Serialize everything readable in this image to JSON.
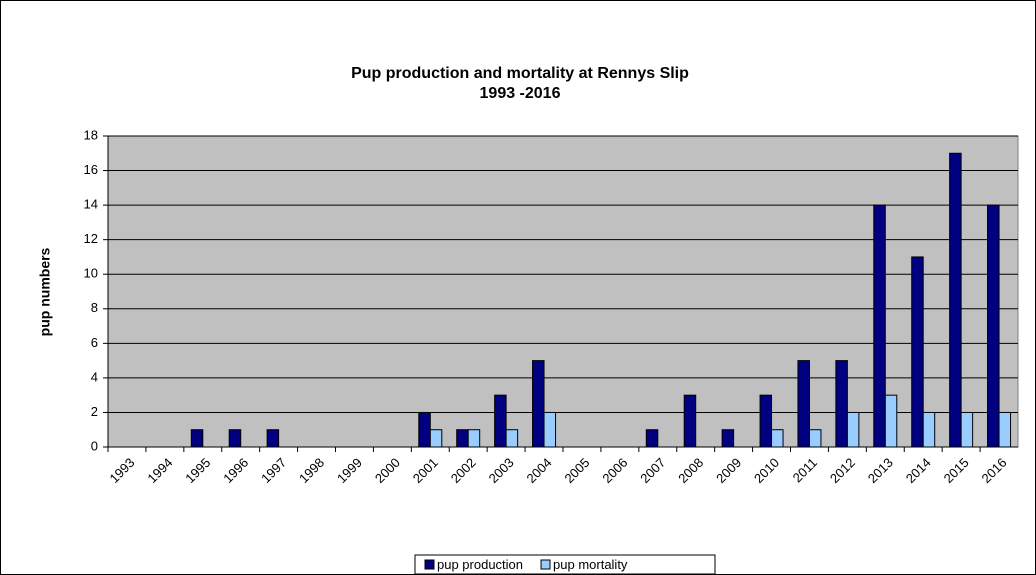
{
  "chart_data": {
    "type": "bar",
    "title": "Pup production  and mortality  at Rennys Slip",
    "subtitle": "1993 -2016",
    "y_label": "pup numbers",
    "categories": [
      "1993",
      "1994",
      "1995",
      "1996",
      "1997",
      "1998",
      "1999",
      "2000",
      "2001",
      "2002",
      "2003",
      "2004",
      "2005",
      "2006",
      "2007",
      "2008",
      "2009",
      "2010",
      "2011",
      "2012",
      "2013",
      "2014",
      "2015",
      "2016"
    ],
    "series": [
      {
        "name": "pup production",
        "color": "#000080",
        "values": [
          0,
          0,
          1,
          1,
          1,
          0,
          0,
          0,
          2,
          1,
          3,
          5,
          0,
          0,
          1,
          3,
          1,
          3,
          5,
          5,
          14,
          11,
          17,
          14
        ]
      },
      {
        "name": "pup mortality",
        "color": "#99ccff",
        "values": [
          0,
          0,
          0,
          0,
          0,
          0,
          0,
          0,
          1,
          1,
          1,
          2,
          0,
          0,
          0,
          0,
          0,
          1,
          1,
          2,
          3,
          2,
          2,
          2
        ]
      }
    ],
    "ylim": [
      0,
      18
    ],
    "yticks": [
      0,
      2,
      4,
      6,
      8,
      10,
      12,
      14,
      16,
      18
    ],
    "grid": true,
    "legend": "bottom"
  }
}
